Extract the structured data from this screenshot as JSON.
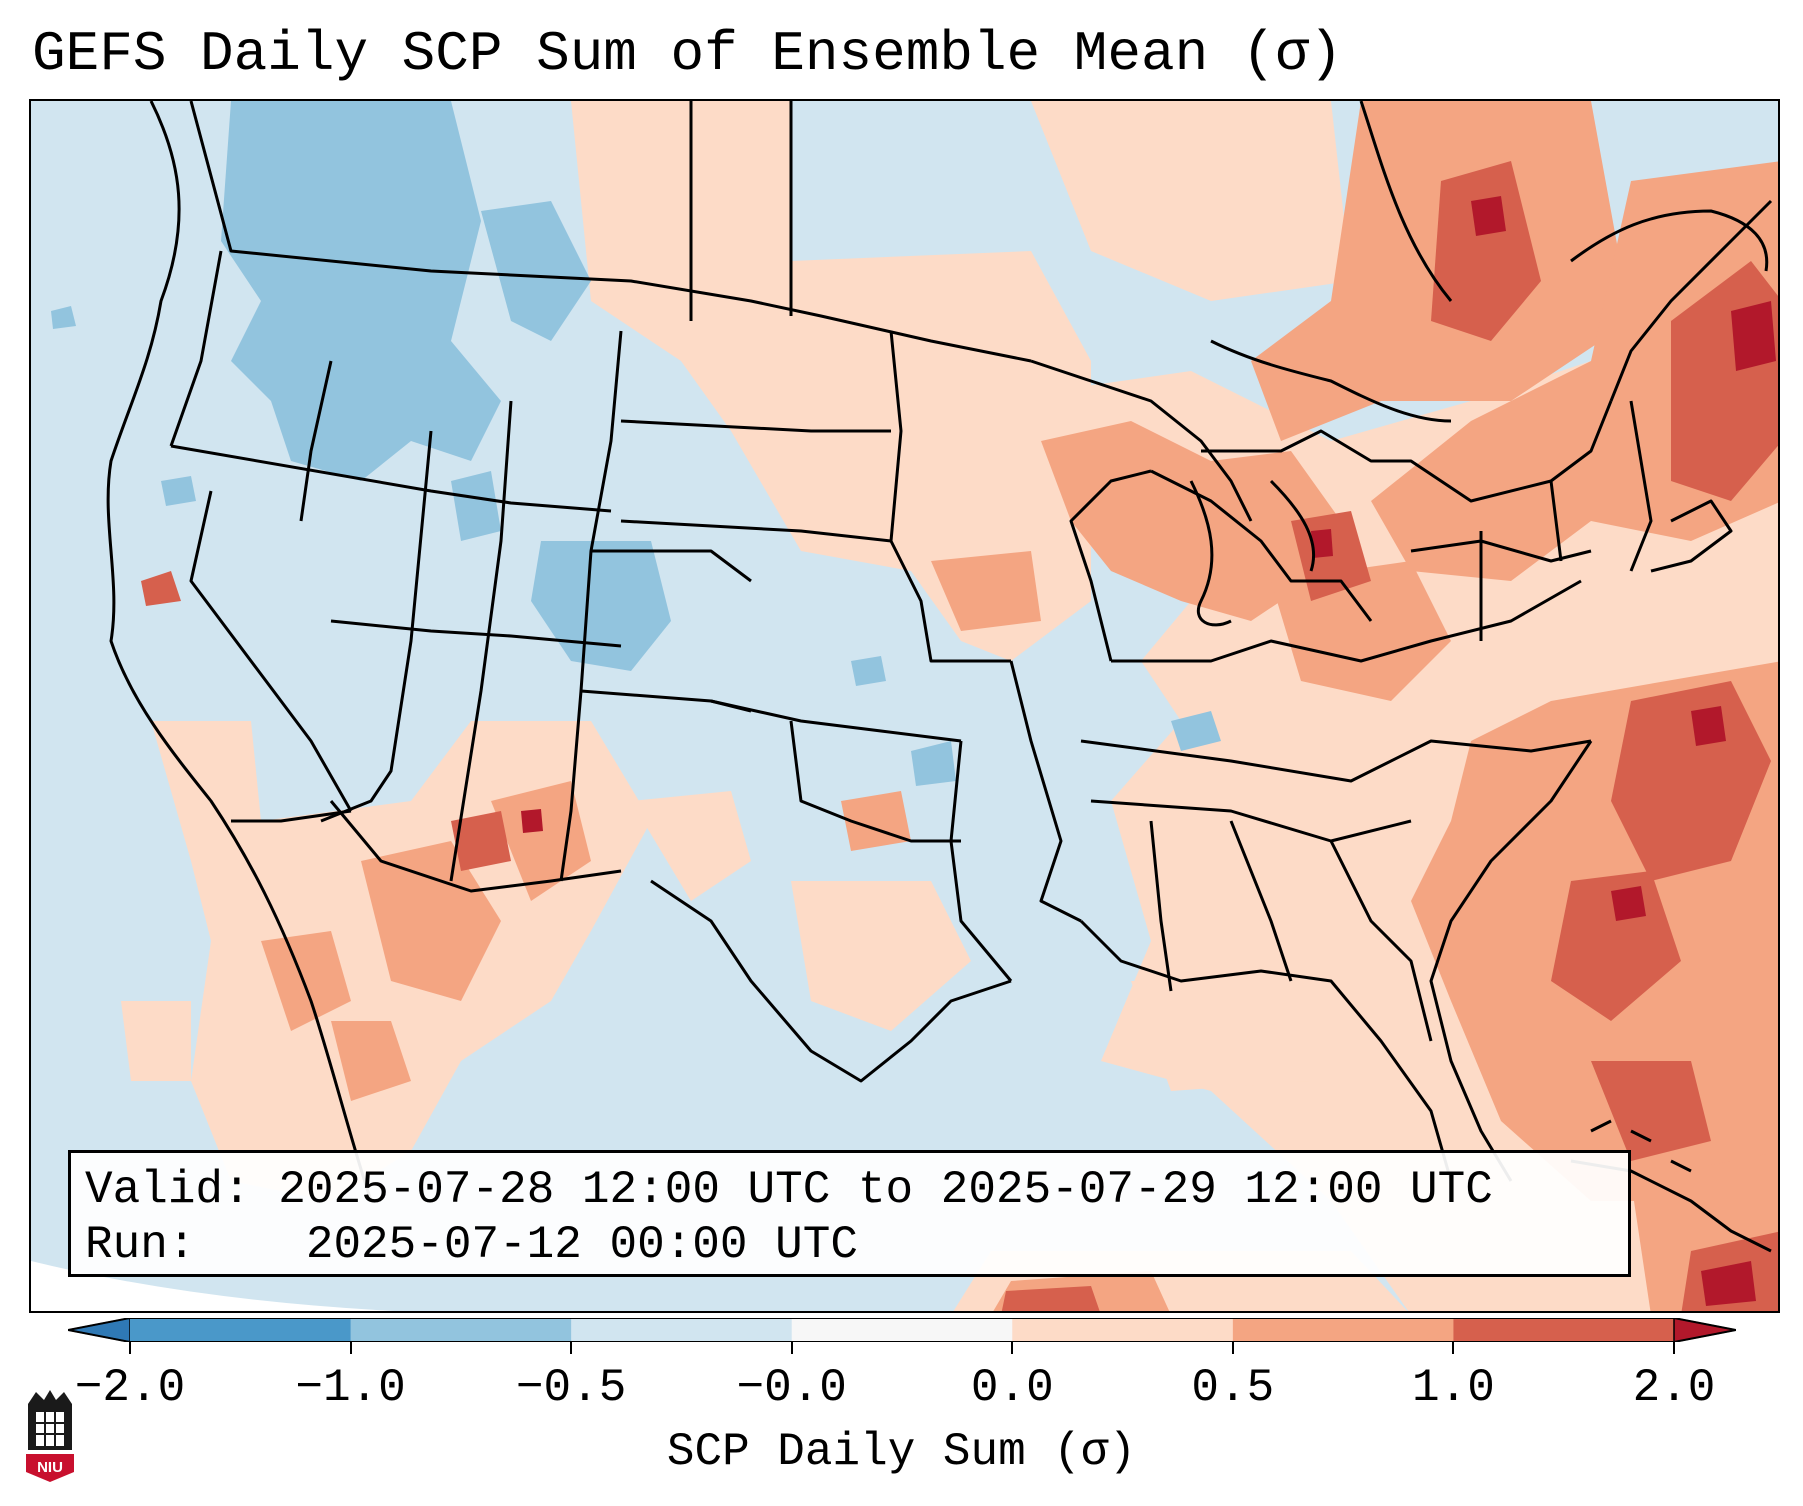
{
  "title": "GEFS Daily SCP Sum of Ensemble Mean (σ)",
  "annotation": {
    "valid_label": "Valid:",
    "valid_value": "2025-07-28 12:00 UTC to 2025-07-29 12:00 UTC",
    "run_label": "Run:",
    "run_value": "2025-07-12 00:00 UTC"
  },
  "colorbar": {
    "label": "SCP Daily Sum (σ)",
    "ticks": [
      "−2.0",
      "−1.0",
      "−0.5",
      "−0.0",
      "0.0",
      "0.5",
      "1.0",
      "2.0"
    ],
    "colors": [
      "#2f79b5",
      "#4a98c9",
      "#92c4de",
      "#d1e5f0",
      "#f7f7f7",
      "#fddbc7",
      "#f4a582",
      "#d6604d",
      "#b2182b"
    ],
    "extend": "both"
  },
  "logo": {
    "text": "NIU",
    "icon": "university-tower-icon"
  },
  "map": {
    "projection": "lambert-conformal-conus",
    "background_color": "#d1e5f0",
    "outside_domain_color": "#ffffff",
    "field_colors": {
      "weak_negative": "#92c4de",
      "near_zero_negative": "#d1e5f0",
      "near_zero_positive": "#fddbc7",
      "moderate": "#f4a582",
      "strong": "#d6604d",
      "extreme": "#b2182b"
    },
    "regions": [
      {
        "name": "northwest-negative",
        "category": "weak_negative"
      },
      {
        "name": "colorado-utah-negative",
        "category": "weak_negative"
      },
      {
        "name": "southwest-monsoon-positive",
        "category": "moderate"
      },
      {
        "name": "great-lakes-positive",
        "category": "moderate"
      },
      {
        "name": "ohio-valley-positive",
        "category": "moderate"
      },
      {
        "name": "new-england-positive",
        "category": "strong"
      },
      {
        "name": "atlantic-offshore-positive",
        "category": "strong"
      },
      {
        "name": "ontario-quebec-positive",
        "category": "strong"
      },
      {
        "name": "gulf-positive",
        "category": "near_zero_positive"
      }
    ]
  }
}
